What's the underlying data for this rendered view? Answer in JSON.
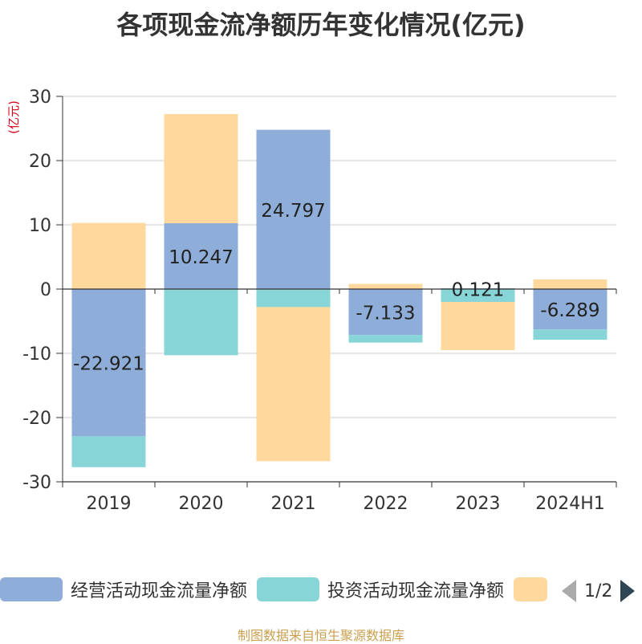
{
  "title": "各项现金流净额历年变化情况(亿元)",
  "source_note": "制图数据来自恒生聚源数据库",
  "legend_pager": "1/2",
  "chart_data": {
    "type": "bar",
    "stacked": true,
    "title": "各项现金流净额历年变化情况(亿元)",
    "ylabel": "(亿元)",
    "ylim": [
      -30,
      30
    ],
    "yticks": [
      30,
      20,
      10,
      0,
      -10,
      -20,
      -30
    ],
    "grid": true,
    "legend_position": "bottom",
    "categories": [
      "2019",
      "2020",
      "2021",
      "2022",
      "2023",
      "2024H1"
    ],
    "series": [
      {
        "name": "经营活动现金流量净额",
        "color": "#8eadd8",
        "values": [
          -22.921,
          10.247,
          24.797,
          -7.133,
          0.121,
          -6.289
        ],
        "labels": [
          "-22.921",
          "10.247",
          "24.797",
          "-7.133",
          "0.121",
          "-6.289"
        ]
      },
      {
        "name": "投资活动现金流量净额",
        "color": "#88d5d8",
        "values": [
          -4.8,
          -10.3,
          -2.8,
          -1.2,
          -2.0,
          -1.6
        ]
      },
      {
        "name": "",
        "color": "#fed89c",
        "values": [
          10.3,
          17.0,
          -24.0,
          0.8,
          -7.5,
          1.5
        ]
      }
    ]
  }
}
